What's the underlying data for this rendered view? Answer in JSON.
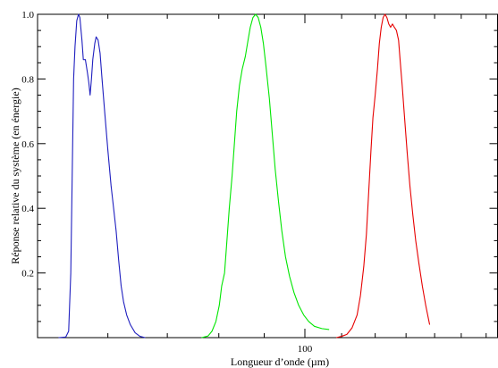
{
  "chart_data": {
    "type": "line",
    "title": "",
    "xlabel": "Longueur d’onde (µm)",
    "ylabel": "Réponse relative du système (en énergie)",
    "xscale": "log",
    "xlim": [
      50,
      165
    ],
    "ylim": [
      0,
      1.0
    ],
    "x_ticks": [
      {
        "value": 100,
        "label": "100"
      }
    ],
    "y_ticks": [
      {
        "value": 0.2,
        "label": "0.2"
      },
      {
        "value": 0.4,
        "label": "0.4"
      },
      {
        "value": 0.6,
        "label": "0.6"
      },
      {
        "value": 0.8,
        "label": "0.8"
      },
      {
        "value": 1.0,
        "label": "1.0"
      }
    ],
    "grid": false,
    "legend": "none",
    "series": [
      {
        "color": "#1f1fbf",
        "points": [
          [
            52.8,
            0
          ],
          [
            53.8,
            0.002
          ],
          [
            54.2,
            0.02
          ],
          [
            54.5,
            0.2
          ],
          [
            54.7,
            0.5
          ],
          [
            54.9,
            0.8
          ],
          [
            55.1,
            0.9
          ],
          [
            55.35,
            0.98
          ],
          [
            55.6,
            1.0
          ],
          [
            55.8,
            0.99
          ],
          [
            56.1,
            0.92
          ],
          [
            56.3,
            0.86
          ],
          [
            56.6,
            0.86
          ],
          [
            56.9,
            0.82
          ],
          [
            57.1,
            0.79
          ],
          [
            57.3,
            0.75
          ],
          [
            57.5,
            0.8
          ],
          [
            57.7,
            0.86
          ],
          [
            58.0,
            0.91
          ],
          [
            58.2,
            0.93
          ],
          [
            58.5,
            0.92
          ],
          [
            58.8,
            0.88
          ],
          [
            59.1,
            0.8
          ],
          [
            59.5,
            0.7
          ],
          [
            60.0,
            0.58
          ],
          [
            60.5,
            0.47
          ],
          [
            60.9,
            0.4
          ],
          [
            61.3,
            0.33
          ],
          [
            61.7,
            0.24
          ],
          [
            62.1,
            0.16
          ],
          [
            62.5,
            0.11
          ],
          [
            63.0,
            0.07
          ],
          [
            63.6,
            0.04
          ],
          [
            64.4,
            0.015
          ],
          [
            65.2,
            0.004
          ],
          [
            66.1,
            0
          ]
        ]
      },
      {
        "color": "#00e600",
        "points": [
          [
            76.5,
            0
          ],
          [
            77.8,
            0.005
          ],
          [
            78.6,
            0.02
          ],
          [
            79.4,
            0.05
          ],
          [
            80.1,
            0.1
          ],
          [
            80.6,
            0.16
          ],
          [
            81.2,
            0.2
          ],
          [
            81.7,
            0.3
          ],
          [
            82.2,
            0.4
          ],
          [
            82.8,
            0.5
          ],
          [
            83.3,
            0.6
          ],
          [
            83.8,
            0.7
          ],
          [
            84.4,
            0.78
          ],
          [
            85.0,
            0.83
          ],
          [
            85.7,
            0.87
          ],
          [
            86.3,
            0.92
          ],
          [
            86.8,
            0.96
          ],
          [
            87.4,
            0.99
          ],
          [
            88.0,
            1.0
          ],
          [
            88.6,
            0.99
          ],
          [
            89.2,
            0.96
          ],
          [
            89.8,
            0.91
          ],
          [
            90.4,
            0.84
          ],
          [
            91.2,
            0.74
          ],
          [
            91.9,
            0.63
          ],
          [
            92.6,
            0.52
          ],
          [
            93.4,
            0.42
          ],
          [
            94.2,
            0.33
          ],
          [
            95.1,
            0.25
          ],
          [
            96.1,
            0.19
          ],
          [
            97.2,
            0.14
          ],
          [
            98.4,
            0.1
          ],
          [
            99.7,
            0.07
          ],
          [
            101.0,
            0.05
          ],
          [
            102.5,
            0.035
          ],
          [
            104.5,
            0.028
          ],
          [
            106.5,
            0.025
          ]
        ]
      },
      {
        "color": "#e60000",
        "points": [
          [
            108.5,
            0
          ],
          [
            110.0,
            0.004
          ],
          [
            111.5,
            0.01
          ],
          [
            113.0,
            0.03
          ],
          [
            114.5,
            0.07
          ],
          [
            115.5,
            0.13
          ],
          [
            116.5,
            0.22
          ],
          [
            117.3,
            0.32
          ],
          [
            118.0,
            0.45
          ],
          [
            118.7,
            0.58
          ],
          [
            119.3,
            0.68
          ],
          [
            120.0,
            0.75
          ],
          [
            120.7,
            0.83
          ],
          [
            121.3,
            0.91
          ],
          [
            121.9,
            0.96
          ],
          [
            122.5,
            0.99
          ],
          [
            123.1,
            1.0
          ],
          [
            123.7,
            0.99
          ],
          [
            124.3,
            0.97
          ],
          [
            124.9,
            0.96
          ],
          [
            125.5,
            0.97
          ],
          [
            126.1,
            0.96
          ],
          [
            126.8,
            0.95
          ],
          [
            127.5,
            0.92
          ],
          [
            128.0,
            0.86
          ],
          [
            128.7,
            0.78
          ],
          [
            129.5,
            0.68
          ],
          [
            130.4,
            0.57
          ],
          [
            131.3,
            0.47
          ],
          [
            132.3,
            0.38
          ],
          [
            133.3,
            0.3
          ],
          [
            134.4,
            0.23
          ],
          [
            135.6,
            0.16
          ],
          [
            136.8,
            0.1
          ],
          [
            138.2,
            0.04
          ]
        ]
      }
    ]
  }
}
